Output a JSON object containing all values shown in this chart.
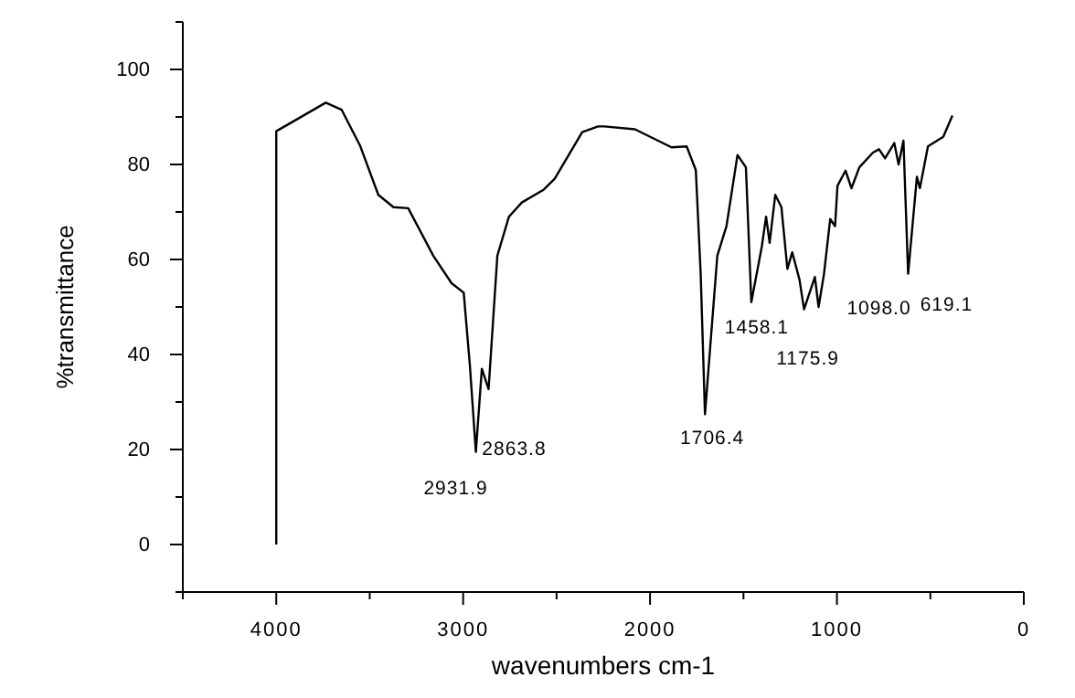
{
  "chart_data": {
    "type": "line",
    "xlabel": "wavenumbers cm-1",
    "ylabel": "%transmittance",
    "xlim": [
      4500,
      0
    ],
    "ylim": [
      -10,
      110
    ],
    "xticks": [
      {
        "value": 4500,
        "label": null
      },
      4000,
      {
        "value": 3500,
        "label": null
      },
      3000,
      {
        "value": 2500,
        "label": null
      },
      2000,
      {
        "value": 1500,
        "label": null
      },
      1000,
      {
        "value": 500,
        "label": null
      },
      0
    ],
    "yticks": [
      {
        "value": -10,
        "label": null
      },
      0,
      {
        "value": 10,
        "label": null
      },
      20,
      {
        "value": 30,
        "label": null
      },
      40,
      {
        "value": 50,
        "label": null
      },
      60,
      {
        "value": 70,
        "label": null
      },
      80,
      {
        "value": 90,
        "label": null
      },
      100,
      {
        "value": 110,
        "label": null
      }
    ],
    "grid": false,
    "marker": "none",
    "line_style": "solid",
    "series": [
      {
        "color": "#000000",
        "x": [
          4000,
          4000,
          3735,
          3650,
          3552,
          3454,
          3373,
          3294,
          3160,
          3062,
          2997,
          2964,
          2932,
          2900,
          2864,
          2817,
          2755,
          2686,
          2572,
          2510,
          2363,
          2278,
          2245,
          2081,
          1885,
          1804,
          1755,
          1729,
          1706,
          1640,
          1591,
          1532,
          1487,
          1458,
          1402,
          1379,
          1360,
          1330,
          1297,
          1265,
          1239,
          1200,
          1176,
          1118,
          1098,
          1069,
          1036,
          1010,
          997,
          954,
          922,
          880,
          807,
          775,
          742,
          693,
          670,
          644,
          619,
          572,
          556,
          513,
          431,
          382
        ],
        "values": [
          0,
          87,
          93,
          91.5,
          84,
          73.6,
          71,
          70.8,
          60.8,
          55,
          53,
          37.7,
          19.5,
          37,
          32.7,
          60.8,
          69,
          72,
          74.6,
          77,
          86.8,
          88,
          88,
          87.4,
          83.6,
          83.8,
          78.8,
          57,
          27.4,
          60.8,
          67,
          82,
          79.4,
          51,
          62.7,
          69,
          63.5,
          73.6,
          71,
          58,
          61.5,
          55.7,
          49.5,
          56.3,
          50,
          57,
          68.5,
          67,
          75.5,
          78.7,
          75,
          79.4,
          82.5,
          83.2,
          81.3,
          84.5,
          80,
          85,
          57,
          77.4,
          75,
          83.8,
          85.8,
          90.3
        ]
      }
    ],
    "annotations": [
      {
        "text": "2931.9",
        "x": 2932,
        "y": 19.5
      },
      {
        "text": "2863.8",
        "x": 2864,
        "y": 32.7
      },
      {
        "text": "1706.4",
        "x": 1706,
        "y": 27.4
      },
      {
        "text": "1458.1",
        "x": 1458,
        "y": 51
      },
      {
        "text": "1175.9",
        "x": 1176,
        "y": 49.5
      },
      {
        "text": "1098.0",
        "x": 1098,
        "y": 50
      },
      {
        "text": "619.1",
        "x": 619,
        "y": 57
      }
    ]
  }
}
